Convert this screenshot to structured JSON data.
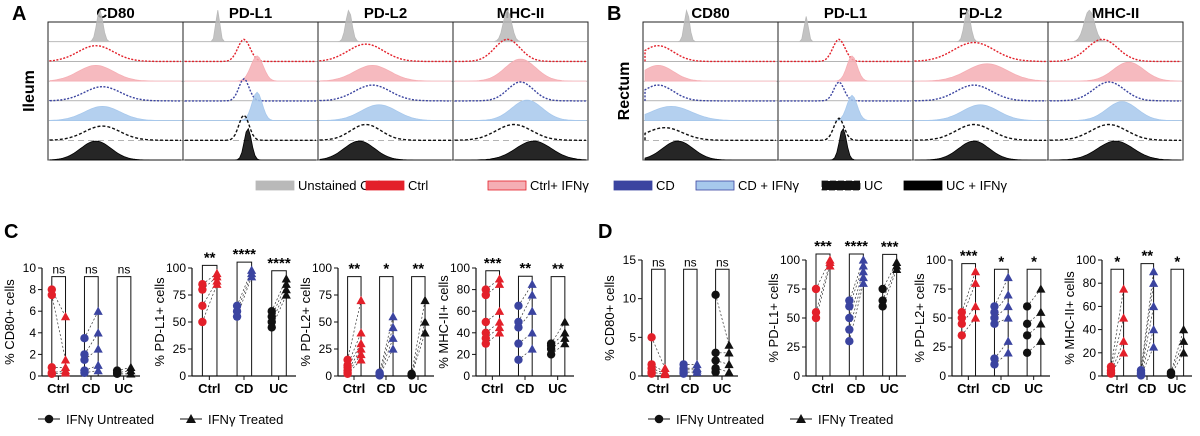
{
  "colors": {
    "unstained": "#b9b9b9",
    "ctrl": "#e3202a",
    "ctrl_ifn": "#f5aeb4",
    "cd": "#3b44a0",
    "cd_ifn": "#a7c8ec",
    "uc": "#111111",
    "uc_ifn": "#000000"
  },
  "panels": {
    "A": "A",
    "B": "B",
    "C": "C",
    "D": "D"
  },
  "histograms": {
    "A": {
      "row_label": "Ileum",
      "markers": [
        "CD80",
        "PD-L1",
        "PD-L2",
        "MHC-II"
      ]
    },
    "B": {
      "row_label": "Rectum",
      "markers": [
        "CD80",
        "PD-L1",
        "PD-L2",
        "MHC-II"
      ]
    }
  },
  "hist_legend": [
    {
      "label": "Unstained Ctrl",
      "key": "unstained",
      "style": "solid"
    },
    {
      "label": "Ctrl",
      "key": "ctrl",
      "style": "line"
    },
    {
      "label": "Ctrl+ IFNγ",
      "key": "ctrl_ifn",
      "style": "fill"
    },
    {
      "label": "CD",
      "key": "cd",
      "style": "line"
    },
    {
      "label": "CD + IFNγ",
      "key": "cd_ifn",
      "style": "fill"
    },
    {
      "label": "UC",
      "key": "uc",
      "style": "dashed"
    },
    {
      "label": "UC + IFNγ",
      "key": "uc_ifn",
      "style": "solid"
    }
  ],
  "scatter_legend": {
    "untreated": "IFNγ Untreated",
    "treated": "IFNγ Treated"
  },
  "chart_data": [
    {
      "type": "scatter",
      "panel": "C",
      "ylabel": "% CD80+ cells",
      "ylim": [
        0,
        10
      ],
      "yticks": [
        0,
        2,
        4,
        6,
        8,
        10
      ],
      "categories": [
        "Ctrl",
        "CD",
        "UC"
      ],
      "significance": [
        "ns",
        "ns",
        "ns"
      ],
      "groups": [
        {
          "untreated": [
            8,
            7.5,
            0.8,
            0.3,
            0.2
          ],
          "treated": [
            5.5,
            1.5,
            0.8,
            0.5,
            0.3
          ]
        },
        {
          "untreated": [
            3.5,
            2,
            1.5,
            0.5,
            0.3
          ],
          "treated": [
            6,
            4,
            2.5,
            1,
            0.5
          ]
        },
        {
          "untreated": [
            0.5,
            0.3,
            0.2
          ],
          "treated": [
            0.8,
            0.5,
            0.2
          ]
        }
      ]
    },
    {
      "type": "scatter",
      "panel": "C",
      "ylabel": "% PD-L1+ cells",
      "ylim": [
        0,
        100
      ],
      "yticks": [
        0,
        25,
        50,
        75,
        100
      ],
      "categories": [
        "Ctrl",
        "CD",
        "UC"
      ],
      "significance": [
        "**",
        "****",
        "****"
      ],
      "groups": [
        {
          "untreated": [
            85,
            80,
            65,
            50
          ],
          "treated": [
            95,
            92,
            88,
            85
          ]
        },
        {
          "untreated": [
            65,
            60,
            55
          ],
          "treated": [
            98,
            95,
            92
          ]
        },
        {
          "untreated": [
            60,
            55,
            50,
            45
          ],
          "treated": [
            90,
            85,
            80,
            75
          ]
        }
      ]
    },
    {
      "type": "scatter",
      "panel": "C",
      "ylabel": "% PD-L2+ cells",
      "ylim": [
        0,
        100
      ],
      "yticks": [
        0,
        25,
        50,
        75,
        100
      ],
      "categories": [
        "Ctrl",
        "CD",
        "UC"
      ],
      "significance": [
        "**",
        "*",
        "**"
      ],
      "groups": [
        {
          "untreated": [
            15,
            10,
            8,
            5,
            3,
            2
          ],
          "treated": [
            70,
            40,
            30,
            25,
            20,
            15
          ]
        },
        {
          "untreated": [
            3,
            2,
            1,
            0.5
          ],
          "treated": [
            55,
            45,
            35,
            25
          ]
        },
        {
          "untreated": [
            2,
            1,
            0.5
          ],
          "treated": [
            70,
            50,
            40
          ]
        }
      ]
    },
    {
      "type": "scatter",
      "panel": "C",
      "ylabel": "% MHC-II+ cells",
      "ylim": [
        0,
        100
      ],
      "yticks": [
        0,
        20,
        40,
        60,
        80,
        100
      ],
      "categories": [
        "Ctrl",
        "CD",
        "UC"
      ],
      "significance": [
        "***",
        "**",
        "**"
      ],
      "groups": [
        {
          "untreated": [
            80,
            75,
            50,
            40,
            35,
            30
          ],
          "treated": [
            90,
            85,
            60,
            50,
            45,
            40
          ]
        },
        {
          "untreated": [
            65,
            50,
            45,
            30,
            15
          ],
          "treated": [
            85,
            75,
            60,
            40,
            25
          ]
        },
        {
          "untreated": [
            30,
            28,
            25,
            20
          ],
          "treated": [
            50,
            40,
            35,
            30
          ]
        }
      ]
    },
    {
      "type": "scatter",
      "panel": "D",
      "ylabel": "% CD80+ cells",
      "ylim": [
        0,
        15
      ],
      "yticks": [
        0,
        5,
        10,
        15
      ],
      "categories": [
        "Ctrl",
        "CD",
        "UC"
      ],
      "significance": [
        "ns",
        "ns",
        "ns"
      ],
      "groups": [
        {
          "untreated": [
            5,
            1.5,
            1,
            0.5,
            0.3
          ],
          "treated": [
            1,
            0.5,
            0.3,
            0.2
          ]
        },
        {
          "untreated": [
            1.5,
            1,
            0.8,
            0.5,
            0.3
          ],
          "treated": [
            1.5,
            1,
            0.8,
            0.5
          ]
        },
        {
          "untreated": [
            10.5,
            3,
            2,
            1,
            0.5
          ],
          "treated": [
            4,
            3,
            1.5,
            0.5
          ]
        }
      ]
    },
    {
      "type": "scatter",
      "panel": "D",
      "ylabel": "% PD-L1+ cells",
      "ylim": [
        0,
        100
      ],
      "yticks": [
        0,
        25,
        50,
        75,
        100
      ],
      "categories": [
        "Ctrl",
        "CD",
        "UC"
      ],
      "significance": [
        "***",
        "****",
        "***"
      ],
      "groups": [
        {
          "untreated": [
            75,
            55,
            50
          ],
          "treated": [
            100,
            98,
            95
          ]
        },
        {
          "untreated": [
            65,
            60,
            50,
            40,
            30
          ],
          "treated": [
            100,
            95,
            90,
            85,
            80
          ]
        },
        {
          "untreated": [
            75,
            65,
            60
          ],
          "treated": [
            98,
            95,
            92
          ]
        }
      ]
    },
    {
      "type": "scatter",
      "panel": "D",
      "ylabel": "% PD-L2+ cells",
      "ylim": [
        0,
        100
      ],
      "yticks": [
        0,
        25,
        50,
        75,
        100
      ],
      "categories": [
        "Ctrl",
        "CD",
        "UC"
      ],
      "significance": [
        "***",
        "*",
        "*"
      ],
      "groups": [
        {
          "untreated": [
            55,
            50,
            45,
            35
          ],
          "treated": [
            90,
            80,
            60,
            50
          ]
        },
        {
          "untreated": [
            60,
            55,
            50,
            45,
            15,
            10
          ],
          "treated": [
            85,
            70,
            60,
            50,
            30,
            20
          ]
        },
        {
          "untreated": [
            60,
            45,
            35,
            20
          ],
          "treated": [
            75,
            55,
            45,
            30
          ]
        }
      ]
    },
    {
      "type": "scatter",
      "panel": "D",
      "ylabel": "% MHC-II+ cells",
      "ylim": [
        0,
        100
      ],
      "yticks": [
        0,
        20,
        40,
        60,
        80,
        100
      ],
      "categories": [
        "Ctrl",
        "CD",
        "UC"
      ],
      "significance": [
        "*",
        "**",
        "*"
      ],
      "groups": [
        {
          "untreated": [
            8,
            5,
            3,
            2
          ],
          "treated": [
            75,
            50,
            30,
            20
          ]
        },
        {
          "untreated": [
            5,
            3,
            2,
            1,
            0.5
          ],
          "treated": [
            90,
            80,
            60,
            40,
            25
          ]
        },
        {
          "untreated": [
            3,
            2,
            1
          ],
          "treated": [
            40,
            30,
            20
          ]
        }
      ]
    }
  ]
}
